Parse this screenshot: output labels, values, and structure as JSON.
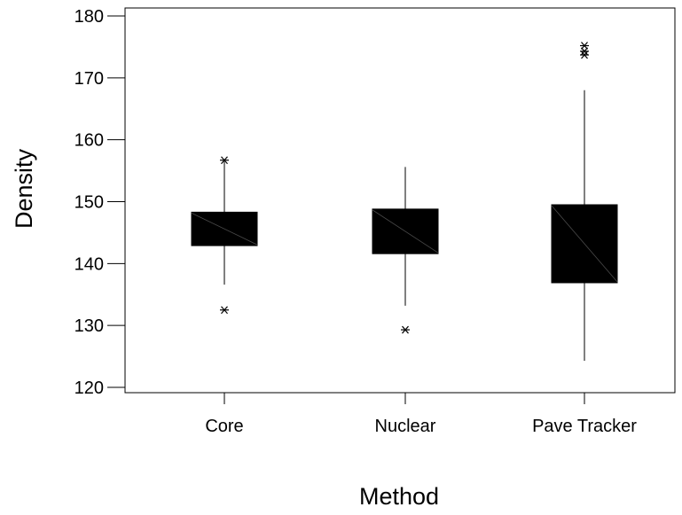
{
  "chart_data": {
    "type": "box",
    "xlabel": "Method",
    "ylabel": "Density",
    "ylim": [
      118,
      181
    ],
    "yticks": [
      120,
      130,
      140,
      150,
      160,
      170,
      180
    ],
    "grid": false,
    "legend": "none",
    "box_color": "#000000",
    "categories": [
      "Core",
      "Nuclear",
      "Pave Tracker"
    ],
    "boxes": [
      {
        "category": "Core",
        "whisker_low": 136.6,
        "q1": 142.9,
        "q3": 148.3,
        "whisker_high": 156.5,
        "outliers": [
          132.5,
          156.7
        ]
      },
      {
        "category": "Nuclear",
        "whisker_low": 133.2,
        "q1": 141.6,
        "q3": 148.8,
        "whisker_high": 155.6,
        "outliers": [
          129.3
        ]
      },
      {
        "category": "Pave Tracker",
        "whisker_low": 124.3,
        "q1": 136.9,
        "q3": 149.5,
        "whisker_high": 168.0,
        "outliers": [
          173.7,
          174.3,
          175.2
        ]
      }
    ]
  }
}
